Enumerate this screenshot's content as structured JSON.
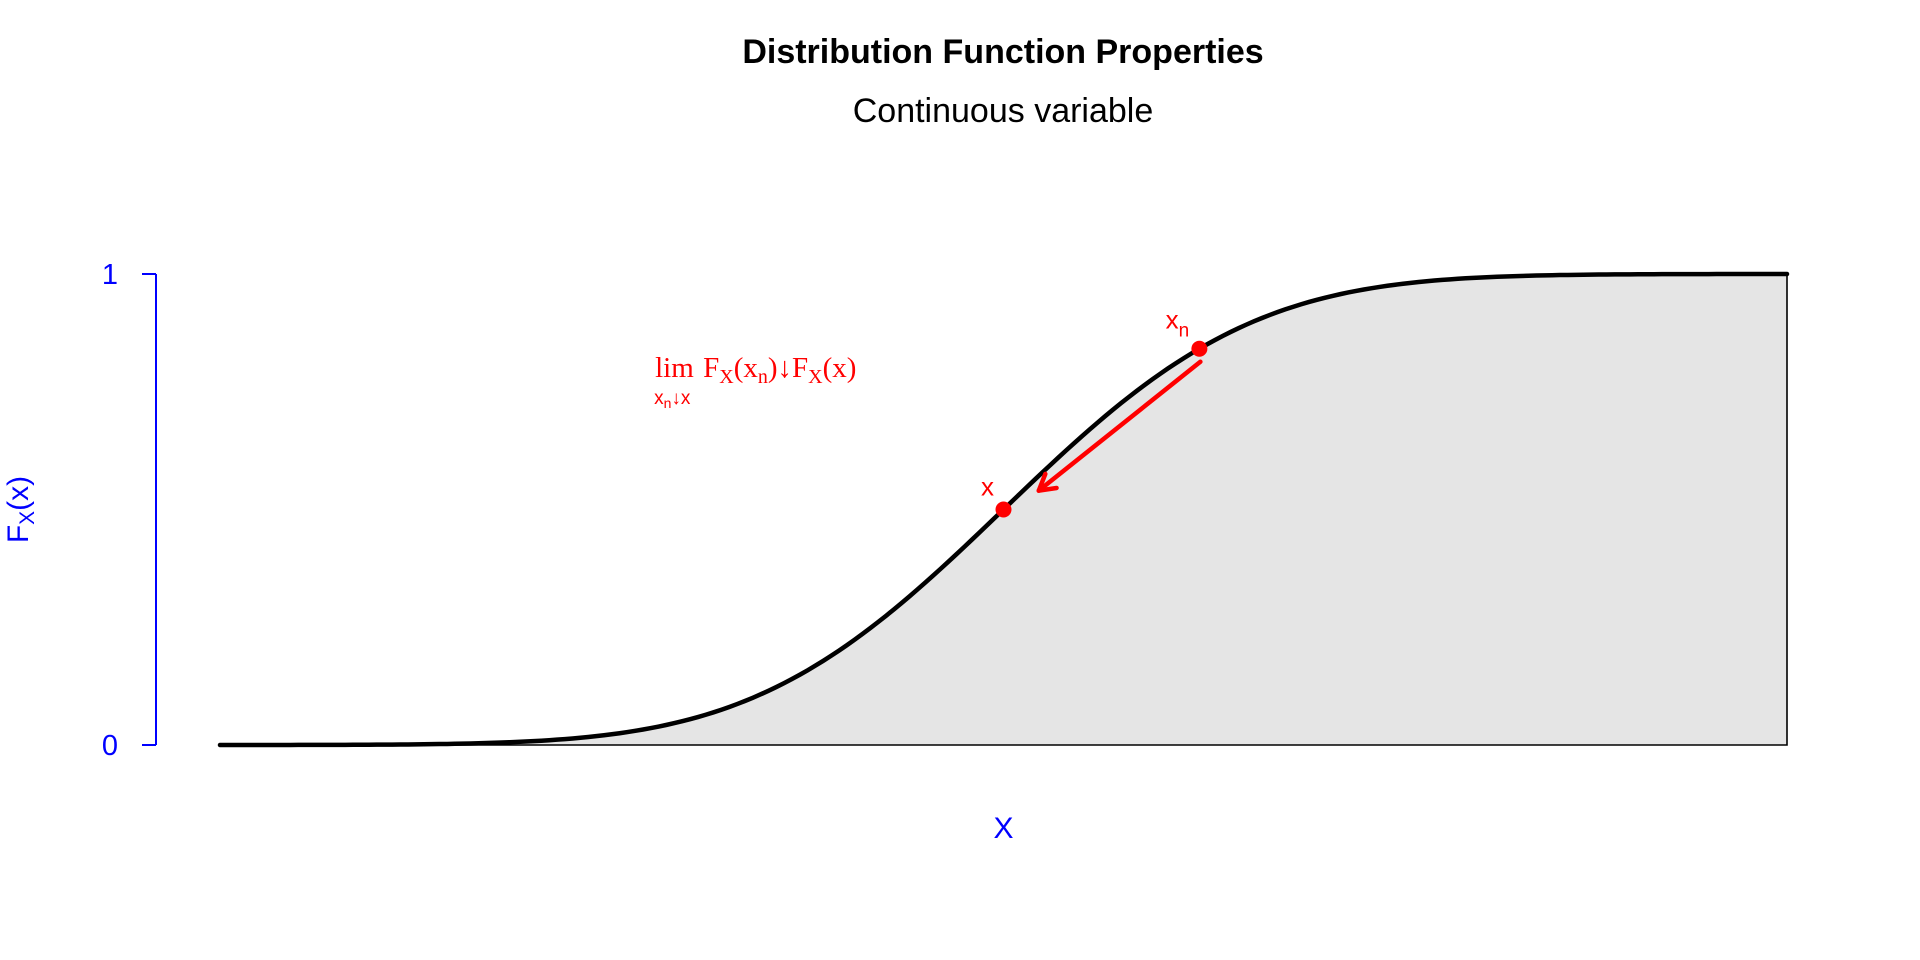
{
  "chart_data": {
    "type": "line",
    "title": "Distribution Function Properties",
    "subtitle": "Continuous variable",
    "xlabel": "X",
    "ylabel": {
      "main": "F",
      "sub": "X",
      "tail": "(x)"
    },
    "xlim": [
      -4,
      4
    ],
    "ylim": [
      0,
      1
    ],
    "x_ticks_shown": false,
    "y_ticks": [
      {
        "value": 0,
        "label": "0"
      },
      {
        "value": 1,
        "label": "1"
      }
    ],
    "grid": false,
    "legend": "none",
    "fill_under_curve": true,
    "series": [
      {
        "shape": "normal-cdf",
        "mean": 0,
        "sd": 1,
        "x_range": [
          -4,
          4
        ]
      }
    ],
    "points": [
      {
        "x": 0,
        "y": 0.5,
        "label": "x",
        "label_sub": ""
      },
      {
        "x": 1,
        "y": 0.8413,
        "label": "x",
        "label_sub": "n"
      }
    ],
    "arrow": {
      "from": {
        "x": 1,
        "y": 0.8413
      },
      "to": {
        "x": 0.18,
        "y": 0.54
      }
    },
    "annotation": {
      "lim": "lim",
      "lim_sub": "x",
      "lim_sub_n": "n",
      "lim_sub_tail": "↓x",
      "expr_a": "F",
      "expr_a_sub": "X",
      "expr_b": "(x",
      "expr_b_sub": "n",
      "expr_c": ")↓F",
      "expr_c_sub": "X",
      "expr_d": "(x)",
      "anchor": {
        "x": -1.6,
        "y": 0.82
      }
    },
    "colors": {
      "axis": "#0000ff",
      "curve": "#000000",
      "fill": "#e5e5e5",
      "highlight": "#ff0000"
    }
  }
}
